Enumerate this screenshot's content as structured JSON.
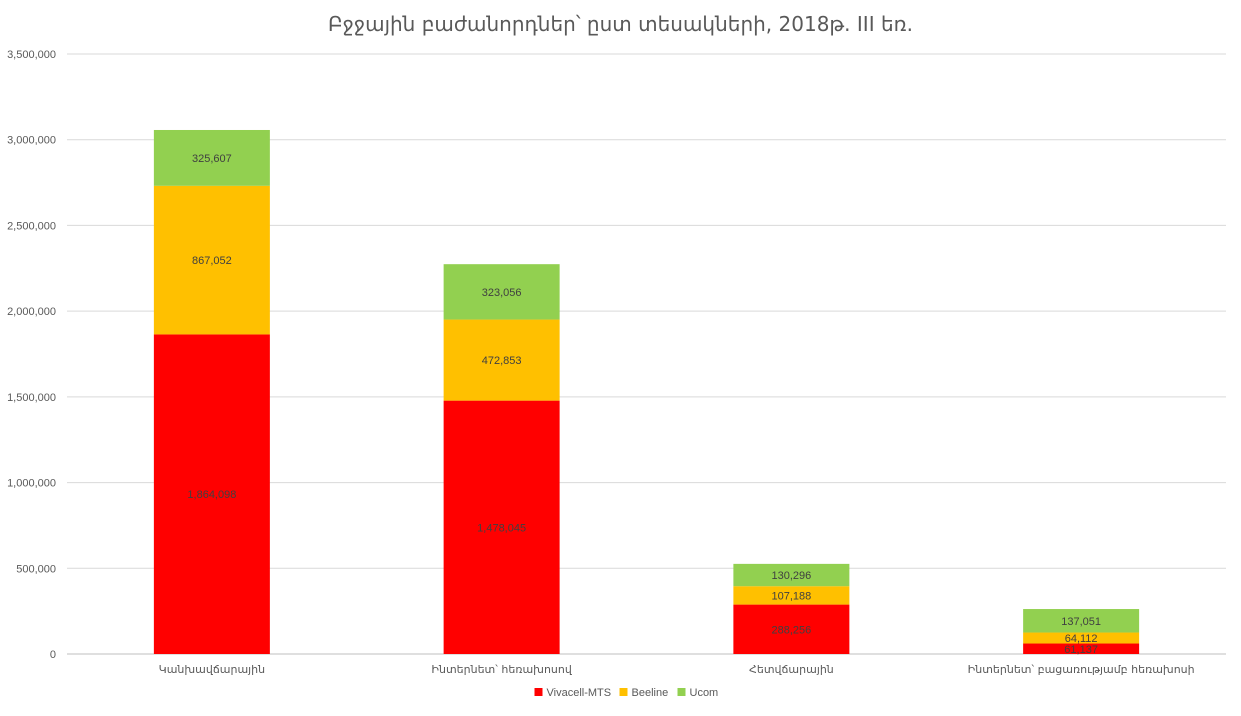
{
  "chart_data": {
    "type": "bar",
    "stacked": true,
    "title": "Բջջային բաժանորդներ՝ ըստ տեսակների, 2018թ. III եռ.",
    "xlabel": "",
    "ylabel": "",
    "ylim": [
      0,
      3500000
    ],
    "yticks": [
      0,
      500000,
      1000000,
      1500000,
      2000000,
      2500000,
      3000000,
      3500000
    ],
    "ytick_labels": [
      "0",
      "500,000",
      "1,000,000",
      "1,500,000",
      "2,000,000",
      "2,500,000",
      "3,000,000",
      "3,500,000"
    ],
    "grid": true,
    "legend_position": "bottom",
    "categories": [
      "Կանխավճարային",
      "Ինտերնետ՝ հեռախոսով",
      "Հետվճարային",
      "Ինտերնետ՝ բացառությամբ հեռախոսի"
    ],
    "series": [
      {
        "name": "Vivacell-MTS",
        "color": "#FF0000",
        "values": [
          1864098,
          1478045,
          288256,
          61137
        ],
        "labels": [
          "1,864,098",
          "1,478,045",
          "288,256",
          "61,137"
        ]
      },
      {
        "name": "Beeline",
        "color": "#FFC000",
        "values": [
          867052,
          472853,
          107188,
          64112
        ],
        "labels": [
          "867,052",
          "472,853",
          "107,188",
          "64,112"
        ]
      },
      {
        "name": "Ucom",
        "color": "#92D050",
        "values": [
          325607,
          323056,
          130296,
          137051
        ],
        "labels": [
          "325,607",
          "323,056",
          "130,296",
          "137,051"
        ]
      }
    ]
  }
}
